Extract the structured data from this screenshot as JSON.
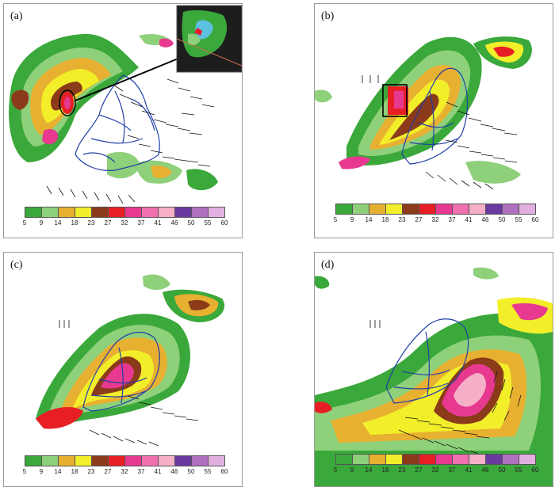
{
  "panels": [
    {
      "id": "a",
      "label": "(a)"
    },
    {
      "id": "b",
      "label": "(b)"
    },
    {
      "id": "c",
      "label": "(c)"
    },
    {
      "id": "d",
      "label": "(d)"
    }
  ],
  "colorbar": {
    "ticks": [
      "5",
      "9",
      "14",
      "18",
      "23",
      "27",
      "32",
      "37",
      "41",
      "46",
      "50",
      "55",
      "60"
    ],
    "colors": [
      "#3aa83a",
      "#8fd07a",
      "#e8b030",
      "#f2ef2a",
      "#8b3a1a",
      "#e81e25",
      "#e6398f",
      "#f070b0",
      "#f5b0c8",
      "#6a3aa0",
      "#b070c0",
      "#e2b0e0"
    ]
  },
  "colors": {
    "boundary": "#1f3fa8",
    "wind_arrow": "#111111"
  }
}
